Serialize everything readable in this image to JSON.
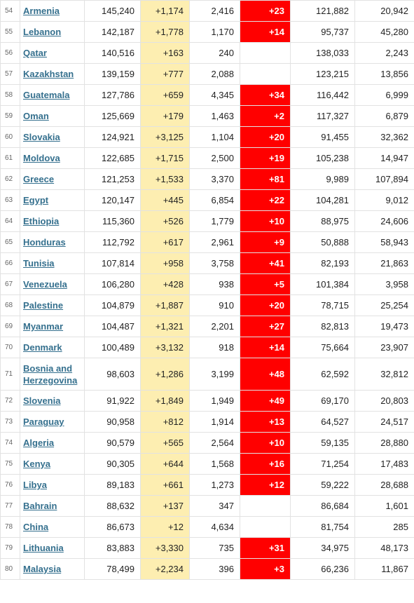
{
  "colors": {
    "new_cases_bg": "#fdeeb1",
    "new_deaths_bg": "#ff0000",
    "link": "#35708e"
  },
  "rows": [
    {
      "num": "54",
      "country": "Armenia",
      "total": "145,240",
      "new_cases": "+1,174",
      "deaths": "2,416",
      "new_deaths": "+23",
      "recovered": "121,882",
      "active": "20,942"
    },
    {
      "num": "55",
      "country": "Lebanon",
      "total": "142,187",
      "new_cases": "+1,778",
      "deaths": "1,170",
      "new_deaths": "+14",
      "recovered": "95,737",
      "active": "45,280"
    },
    {
      "num": "56",
      "country": "Qatar",
      "total": "140,516",
      "new_cases": "+163",
      "deaths": "240",
      "new_deaths": "",
      "recovered": "138,033",
      "active": "2,243"
    },
    {
      "num": "57",
      "country": "Kazakhstan",
      "total": "139,159",
      "new_cases": "+777",
      "deaths": "2,088",
      "new_deaths": "",
      "recovered": "123,215",
      "active": "13,856"
    },
    {
      "num": "58",
      "country": "Guatemala",
      "total": "127,786",
      "new_cases": "+659",
      "deaths": "4,345",
      "new_deaths": "+34",
      "recovered": "116,442",
      "active": "6,999"
    },
    {
      "num": "59",
      "country": "Oman",
      "total": "125,669",
      "new_cases": "+179",
      "deaths": "1,463",
      "new_deaths": "+2",
      "recovered": "117,327",
      "active": "6,879"
    },
    {
      "num": "60",
      "country": "Slovakia",
      "total": "124,921",
      "new_cases": "+3,125",
      "deaths": "1,104",
      "new_deaths": "+20",
      "recovered": "91,455",
      "active": "32,362"
    },
    {
      "num": "61",
      "country": "Moldova",
      "total": "122,685",
      "new_cases": "+1,715",
      "deaths": "2,500",
      "new_deaths": "+19",
      "recovered": "105,238",
      "active": "14,947"
    },
    {
      "num": "62",
      "country": "Greece",
      "total": "121,253",
      "new_cases": "+1,533",
      "deaths": "3,370",
      "new_deaths": "+81",
      "recovered": "9,989",
      "active": "107,894"
    },
    {
      "num": "63",
      "country": "Egypt",
      "total": "120,147",
      "new_cases": "+445",
      "deaths": "6,854",
      "new_deaths": "+22",
      "recovered": "104,281",
      "active": "9,012"
    },
    {
      "num": "64",
      "country": "Ethiopia",
      "total": "115,360",
      "new_cases": "+526",
      "deaths": "1,779",
      "new_deaths": "+10",
      "recovered": "88,975",
      "active": "24,606"
    },
    {
      "num": "65",
      "country": "Honduras",
      "total": "112,792",
      "new_cases": "+617",
      "deaths": "2,961",
      "new_deaths": "+9",
      "recovered": "50,888",
      "active": "58,943"
    },
    {
      "num": "66",
      "country": "Tunisia",
      "total": "107,814",
      "new_cases": "+958",
      "deaths": "3,758",
      "new_deaths": "+41",
      "recovered": "82,193",
      "active": "21,863"
    },
    {
      "num": "67",
      "country": "Venezuela",
      "total": "106,280",
      "new_cases": "+428",
      "deaths": "938",
      "new_deaths": "+5",
      "recovered": "101,384",
      "active": "3,958"
    },
    {
      "num": "68",
      "country": "Palestine",
      "total": "104,879",
      "new_cases": "+1,887",
      "deaths": "910",
      "new_deaths": "+20",
      "recovered": "78,715",
      "active": "25,254"
    },
    {
      "num": "69",
      "country": "Myanmar",
      "total": "104,487",
      "new_cases": "+1,321",
      "deaths": "2,201",
      "new_deaths": "+27",
      "recovered": "82,813",
      "active": "19,473"
    },
    {
      "num": "70",
      "country": "Denmark",
      "total": "100,489",
      "new_cases": "+3,132",
      "deaths": "918",
      "new_deaths": "+14",
      "recovered": "75,664",
      "active": "23,907"
    },
    {
      "num": "71",
      "country": "Bosnia and Herzegovina",
      "total": "98,603",
      "new_cases": "+1,286",
      "deaths": "3,199",
      "new_deaths": "+48",
      "recovered": "62,592",
      "active": "32,812"
    },
    {
      "num": "72",
      "country": "Slovenia",
      "total": "91,922",
      "new_cases": "+1,849",
      "deaths": "1,949",
      "new_deaths": "+49",
      "recovered": "69,170",
      "active": "20,803"
    },
    {
      "num": "73",
      "country": "Paraguay",
      "total": "90,958",
      "new_cases": "+812",
      "deaths": "1,914",
      "new_deaths": "+13",
      "recovered": "64,527",
      "active": "24,517"
    },
    {
      "num": "74",
      "country": "Algeria",
      "total": "90,579",
      "new_cases": "+565",
      "deaths": "2,564",
      "new_deaths": "+10",
      "recovered": "59,135",
      "active": "28,880"
    },
    {
      "num": "75",
      "country": "Kenya",
      "total": "90,305",
      "new_cases": "+644",
      "deaths": "1,568",
      "new_deaths": "+16",
      "recovered": "71,254",
      "active": "17,483"
    },
    {
      "num": "76",
      "country": "Libya",
      "total": "89,183",
      "new_cases": "+661",
      "deaths": "1,273",
      "new_deaths": "+12",
      "recovered": "59,222",
      "active": "28,688"
    },
    {
      "num": "77",
      "country": "Bahrain",
      "total": "88,632",
      "new_cases": "+137",
      "deaths": "347",
      "new_deaths": "",
      "recovered": "86,684",
      "active": "1,601"
    },
    {
      "num": "78",
      "country": "China",
      "total": "86,673",
      "new_cases": "+12",
      "deaths": "4,634",
      "new_deaths": "",
      "recovered": "81,754",
      "active": "285"
    },
    {
      "num": "79",
      "country": "Lithuania",
      "total": "83,883",
      "new_cases": "+3,330",
      "deaths": "735",
      "new_deaths": "+31",
      "recovered": "34,975",
      "active": "48,173"
    },
    {
      "num": "80",
      "country": "Malaysia",
      "total": "78,499",
      "new_cases": "+2,234",
      "deaths": "396",
      "new_deaths": "+3",
      "recovered": "66,236",
      "active": "11,867"
    }
  ]
}
